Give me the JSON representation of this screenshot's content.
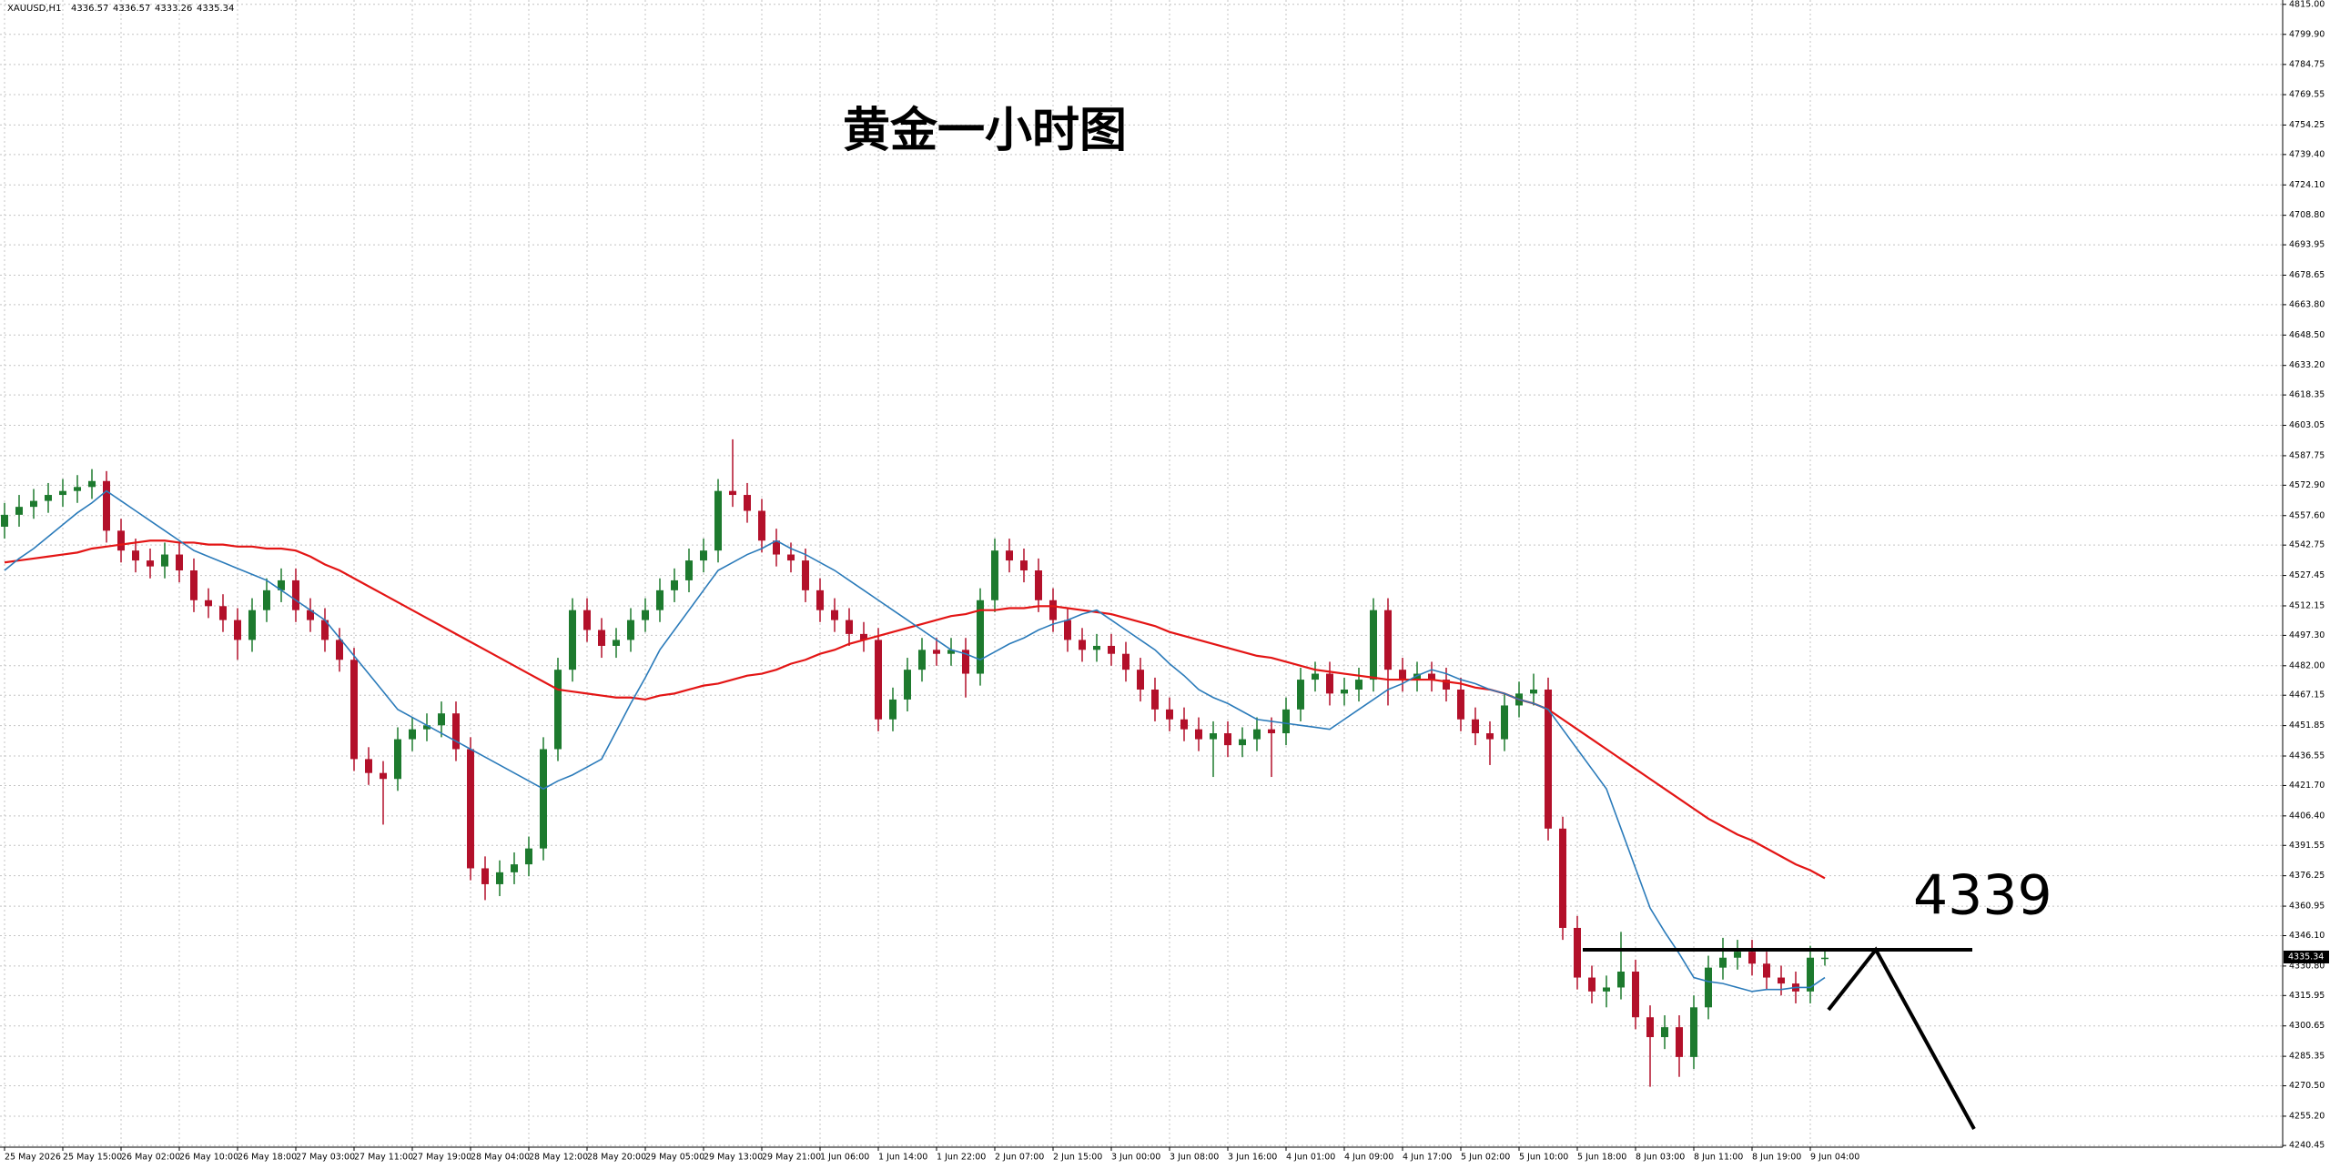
{
  "chart_data": {
    "type": "candlestick",
    "symbol": "XAUUSD,H1",
    "header_ohlc": [
      4336.57,
      4336.57,
      4333.26,
      4335.34
    ],
    "title": "黄金一小时图",
    "categories": [
      "25 May 2026",
      null,
      null,
      null,
      "25 May 15:00",
      null,
      null,
      null,
      "26 May 02:00",
      null,
      null,
      null,
      "26 May 10:00",
      null,
      null,
      null,
      "26 May 18:00",
      null,
      null,
      null,
      "27 May 03:00",
      null,
      null,
      null,
      "27 May 11:00",
      null,
      null,
      null,
      "27 May 19:00",
      null,
      null,
      null,
      "28 May 04:00",
      null,
      null,
      null,
      "28 May 12:00",
      null,
      null,
      null,
      "28 May 20:00",
      null,
      null,
      null,
      "29 May 05:00",
      null,
      null,
      null,
      "29 May 13:00",
      null,
      null,
      null,
      "29 May 21:00",
      null,
      null,
      null,
      "1 Jun 06:00",
      null,
      null,
      null,
      "1 Jun 14:00",
      null,
      null,
      null,
      "1 Jun 22:00",
      null,
      null,
      null,
      "2 Jun 07:00",
      null,
      null,
      null,
      "2 Jun 15:00",
      null,
      null,
      null,
      "3 Jun 00:00",
      null,
      null,
      null,
      "3 Jun 08:00",
      null,
      null,
      null,
      "3 Jun 16:00",
      null,
      null,
      null,
      "4 Jun 01:00",
      null,
      null,
      null,
      "4 Jun 09:00",
      null,
      null,
      null,
      "4 Jun 17:00",
      null,
      null,
      null,
      "5 Jun 02:00",
      null,
      null,
      null,
      "5 Jun 10:00",
      null,
      null,
      null,
      "5 Jun 18:00",
      null,
      null,
      null,
      "8 Jun 03:00",
      null,
      null,
      null,
      "8 Jun 11:00",
      null,
      null,
      null,
      "8 Jun 19:00",
      null,
      null,
      null,
      "9 Jun 04:00",
      null
    ],
    "open": [
      4552,
      4558,
      4562,
      4565,
      4568,
      4570,
      4572,
      4575,
      4550,
      4540,
      4535,
      4532,
      4538,
      4530,
      4515,
      4512,
      4505,
      4495,
      4510,
      4520,
      4525,
      4510,
      4505,
      4495,
      4485,
      4435,
      4428,
      4425,
      4445,
      4450,
      4452,
      4458,
      4440,
      4380,
      4372,
      4378,
      4382,
      4390,
      4440,
      4480,
      4510,
      4500,
      4492,
      4495,
      4505,
      4510,
      4520,
      4525,
      4535,
      4540,
      4570,
      4568,
      4560,
      4545,
      4538,
      4535,
      4520,
      4510,
      4505,
      4498,
      4495,
      4455,
      4465,
      4480,
      4490,
      4488,
      4490,
      4478,
      4515,
      4540,
      4535,
      4530,
      4515,
      4505,
      4495,
      4490,
      4492,
      4488,
      4480,
      4470,
      4460,
      4455,
      4450,
      4445,
      4448,
      4442,
      4445,
      4450,
      4448,
      4460,
      4475,
      4478,
      4468,
      4470,
      4475,
      4510,
      4480,
      4475,
      4478,
      4475,
      4470,
      4455,
      4448,
      4445,
      4462,
      4468,
      4470,
      4400,
      4350,
      4325,
      4318,
      4320,
      4328,
      4305,
      4295,
      4300,
      4285,
      4310,
      4330,
      4335,
      4338,
      4332,
      4325,
      4322,
      4318,
      4335
    ],
    "high": [
      4564,
      4568,
      4571,
      4574,
      4576,
      4578,
      4581,
      4580,
      4556,
      4546,
      4541,
      4544,
      4544,
      4536,
      4521,
      4518,
      4511,
      4516,
      4526,
      4531,
      4531,
      4516,
      4511,
      4501,
      4491,
      4441,
      4434,
      4451,
      4456,
      4458,
      4464,
      4464,
      4446,
      4386,
      4384,
      4388,
      4396,
      4446,
      4486,
      4516,
      4516,
      4506,
      4501,
      4511,
      4516,
      4526,
      4531,
      4541,
      4546,
      4576,
      4596,
      4574,
      4566,
      4551,
      4544,
      4541,
      4526,
      4516,
      4511,
      4504,
      4501,
      4471,
      4486,
      4496,
      4496,
      4496,
      4496,
      4521,
      4546,
      4546,
      4541,
      4536,
      4521,
      4511,
      4501,
      4498,
      4498,
      4494,
      4486,
      4476,
      4466,
      4461,
      4456,
      4454,
      4454,
      4451,
      4456,
      4456,
      4466,
      4481,
      4484,
      4484,
      4476,
      4481,
      4516,
      4516,
      4486,
      4484,
      4484,
      4481,
      4476,
      4461,
      4454,
      4468,
      4474,
      4478,
      4476,
      4406,
      4356,
      4331,
      4326,
      4348,
      4334,
      4311,
      4306,
      4306,
      4316,
      4336,
      4345,
      4344,
      4344,
      4338,
      4331,
      4328,
      4341,
      4339
    ],
    "low": [
      4546,
      4552,
      4556,
      4559,
      4562,
      4564,
      4566,
      4544,
      4534,
      4529,
      4526,
      4526,
      4524,
      4509,
      4506,
      4499,
      4485,
      4489,
      4504,
      4514,
      4504,
      4499,
      4489,
      4479,
      4429,
      4422,
      4402,
      4419,
      4439,
      4444,
      4446,
      4434,
      4374,
      4364,
      4366,
      4372,
      4376,
      4384,
      4434,
      4474,
      4494,
      4486,
      4486,
      4489,
      4499,
      4504,
      4514,
      4519,
      4529,
      4534,
      4562,
      4554,
      4539,
      4532,
      4529,
      4514,
      4504,
      4499,
      4492,
      4489,
      4449,
      4449,
      4459,
      4474,
      4482,
      4482,
      4466,
      4472,
      4509,
      4529,
      4524,
      4509,
      4499,
      4489,
      4484,
      4484,
      4482,
      4474,
      4464,
      4454,
      4449,
      4444,
      4439,
      4426,
      4436,
      4436,
      4439,
      4426,
      4442,
      4454,
      4469,
      4462,
      4462,
      4464,
      4469,
      4462,
      4469,
      4469,
      4469,
      4464,
      4449,
      4442,
      4432,
      4439,
      4456,
      4462,
      4394,
      4344,
      4319,
      4312,
      4310,
      4314,
      4299,
      4270,
      4289,
      4275,
      4279,
      4304,
      4324,
      4329,
      4326,
      4319,
      4316,
      4312,
      4312,
      4331
    ],
    "close": [
      4558,
      4562,
      4565,
      4568,
      4570,
      4572,
      4575,
      4550,
      4540,
      4535,
      4532,
      4538,
      4530,
      4515,
      4512,
      4505,
      4495,
      4510,
      4520,
      4525,
      4510,
      4505,
      4495,
      4485,
      4435,
      4428,
      4425,
      4445,
      4450,
      4452,
      4458,
      4440,
      4380,
      4372,
      4378,
      4382,
      4390,
      4440,
      4480,
      4510,
      4500,
      4492,
      4495,
      4505,
      4510,
      4520,
      4525,
      4535,
      4540,
      4570,
      4568,
      4560,
      4545,
      4538,
      4535,
      4520,
      4510,
      4505,
      4498,
      4495,
      4455,
      4465,
      4480,
      4490,
      4488,
      4490,
      4478,
      4515,
      4540,
      4535,
      4530,
      4515,
      4505,
      4495,
      4490,
      4492,
      4488,
      4480,
      4470,
      4460,
      4455,
      4450,
      4445,
      4448,
      4442,
      4445,
      4450,
      4448,
      4460,
      4475,
      4478,
      4468,
      4470,
      4475,
      4510,
      4480,
      4475,
      4478,
      4475,
      4470,
      4455,
      4448,
      4445,
      4462,
      4468,
      4470,
      4400,
      4350,
      4325,
      4318,
      4320,
      4328,
      4305,
      4295,
      4300,
      4285,
      4310,
      4330,
      4335,
      4338,
      4332,
      4325,
      4322,
      4318,
      4335,
      4335
    ],
    "up_color": "#1d7a2e",
    "down_color": "#b3102a",
    "lines": [
      {
        "color": "#e31515",
        "values": [
          4534,
          4535,
          4536,
          4537,
          4538,
          4539,
          4541,
          4542,
          4543,
          4544,
          4545,
          4545,
          4544,
          4544,
          4543,
          4543,
          4542,
          4542,
          4541,
          4541,
          4540,
          4537,
          4533,
          4530,
          4526,
          4522,
          4518,
          4514,
          4510,
          4506,
          4502,
          4498,
          4494,
          4490,
          4486,
          4482,
          4478,
          4474,
          4470,
          4469,
          4468,
          4467,
          4466,
          4466,
          4465,
          4467,
          4468,
          4470,
          4472,
          4473,
          4475,
          4477,
          4478,
          4480,
          4483,
          4485,
          4488,
          4490,
          4493,
          4495,
          4497,
          4499,
          4501,
          4503,
          4505,
          4507,
          4508,
          4510,
          4510,
          4511,
          4511,
          4512,
          4512,
          4511,
          4510,
          4509,
          4508,
          4506,
          4504,
          4502,
          4499,
          4497,
          4495,
          4493,
          4491,
          4489,
          4487,
          4486,
          4484,
          4482,
          4480,
          4479,
          4478,
          4477,
          4476,
          4475,
          4475,
          4475,
          4475,
          4474,
          4473,
          4471,
          4470,
          4468,
          4465,
          4463,
          4460,
          4455,
          4450,
          4445,
          4440,
          4435,
          4430,
          4425,
          4420,
          4415,
          4410,
          4405,
          4401,
          4397,
          4394,
          4390,
          4386,
          4382,
          4379,
          4375
        ]
      },
      {
        "color": "#2b7bba",
        "values": [
          4530,
          4536,
          4541,
          4547,
          4553,
          4559,
          4564,
          4570,
          4565,
          4560,
          4555,
          4550,
          4545,
          4540,
          4537,
          4534,
          4531,
          4528,
          4525,
          4520,
          4515,
          4510,
          4505,
          4496,
          4487,
          4478,
          4469,
          4460,
          4456,
          4452,
          4448,
          4444,
          4440,
          4436,
          4432,
          4428,
          4424,
          4420,
          4424,
          4427,
          4431,
          4435,
          4449,
          4463,
          4476,
          4490,
          4500,
          4510,
          4520,
          4530,
          4534,
          4538,
          4541,
          4545,
          4541,
          4538,
          4534,
          4530,
          4525,
          4520,
          4515,
          4510,
          4505,
          4500,
          4495,
          4490,
          4488,
          4485,
          4489,
          4493,
          4496,
          4500,
          4503,
          4505,
          4508,
          4510,
          4505,
          4500,
          4495,
          4490,
          4483,
          4477,
          4470,
          4466,
          4463,
          4459,
          4455,
          4454,
          4453,
          4452,
          4451,
          4450,
          4455,
          4460,
          4465,
          4470,
          4473,
          4477,
          4480,
          4478,
          4475,
          4473,
          4470,
          4468,
          4465,
          4463,
          4460,
          4450,
          4440,
          4430,
          4420,
          4400,
          4380,
          4360,
          4348,
          4337,
          4325,
          4323,
          4322,
          4320,
          4318,
          4319,
          4319,
          4320,
          4320,
          4325
        ]
      }
    ],
    "hline": {
      "value": 4339
    },
    "last_price": 4335.34,
    "ylim": [
      4239.6,
      4817.2
    ],
    "yticks": [
      {
        "value": 4815,
        "label": "4815.00"
      },
      {
        "value": 4799.9,
        "label": "4799.90"
      },
      {
        "value": 4784.75,
        "label": "4784.75"
      },
      {
        "value": 4769.55,
        "label": "4769.55"
      },
      {
        "value": 4754.25,
        "label": "4754.25"
      },
      {
        "value": 4739.4,
        "label": "4739.40"
      },
      {
        "value": 4724.1,
        "label": "4724.10"
      },
      {
        "value": 4708.8,
        "label": "4708.80"
      },
      {
        "value": 4693.95,
        "label": "4693.95"
      },
      {
        "value": 4678.65,
        "label": "4678.65"
      },
      {
        "value": 4663.8,
        "label": "4663.80"
      },
      {
        "value": 4648.5,
        "label": "4648.50"
      },
      {
        "value": 4633.2,
        "label": "4633.20"
      },
      {
        "value": 4618.35,
        "label": "4618.35"
      },
      {
        "value": 4603.05,
        "label": "4603.05"
      },
      {
        "value": 4587.75,
        "label": "4587.75"
      },
      {
        "value": 4572.9,
        "label": "4572.90"
      },
      {
        "value": 4557.6,
        "label": "4557.60"
      },
      {
        "value": 4542.75,
        "label": "4542.75"
      },
      {
        "value": 4527.45,
        "label": "4527.45"
      },
      {
        "value": 4512.15,
        "label": "4512.15"
      },
      {
        "value": 4497.3,
        "label": "4497.30"
      },
      {
        "value": 4482,
        "label": "4482.00"
      },
      {
        "value": 4467.15,
        "label": "4467.15"
      },
      {
        "value": 4451.85,
        "label": "4451.85"
      },
      {
        "value": 4436.55,
        "label": "4436.55"
      },
      {
        "value": 4421.7,
        "label": "4421.70"
      },
      {
        "value": 4406.4,
        "label": "4406.40"
      },
      {
        "value": 4391.55,
        "label": "4391.55"
      },
      {
        "value": 4376.25,
        "label": "4376.25"
      },
      {
        "value": 4360.95,
        "label": "4360.95"
      },
      {
        "value": 4346.1,
        "label": "4346.10"
      },
      {
        "value": 4330.8,
        "label": "4330.80"
      },
      {
        "value": 4315.95,
        "label": "4315.95"
      },
      {
        "value": 4300.65,
        "label": "4300.65"
      },
      {
        "value": 4285.35,
        "label": "4285.35"
      },
      {
        "value": 4270.5,
        "label": "4270.50"
      },
      {
        "value": 4255.2,
        "label": "4255.20"
      },
      {
        "value": 4240.45,
        "label": "4240.45"
      }
    ],
    "grid": true
  }
}
